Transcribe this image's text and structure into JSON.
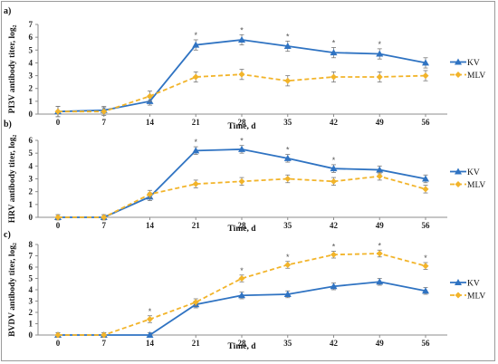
{
  "colors": {
    "kv": "#2f73c2",
    "mlv": "#f2b42a",
    "error": "#7a7a7a",
    "axis": "#8c8c8c"
  },
  "chart_data": [
    {
      "panel": "a)",
      "type": "line",
      "x": [
        0,
        7,
        14,
        21,
        28,
        35,
        42,
        49,
        56
      ],
      "xlabel": "Time, d",
      "ylabel": "PI3V antibody titer, log₂",
      "ylim": [
        0,
        7
      ],
      "yticks": [
        0,
        1,
        2,
        3,
        4,
        5,
        6,
        7
      ],
      "grid": false,
      "legend": "right",
      "series": [
        {
          "name": "KV",
          "values": [
            0.2,
            0.3,
            1.0,
            5.4,
            5.8,
            5.3,
            4.8,
            4.7,
            4.0
          ],
          "error": [
            0.4,
            0.3,
            0.3,
            0.4,
            0.4,
            0.4,
            0.4,
            0.4,
            0.4
          ]
        },
        {
          "name": "MLV",
          "values": [
            0.2,
            0.2,
            1.4,
            2.9,
            3.1,
            2.6,
            2.9,
            2.9,
            3.0
          ],
          "error": [
            0.4,
            0.3,
            0.4,
            0.4,
            0.4,
            0.4,
            0.4,
            0.4,
            0.4
          ]
        }
      ],
      "significant_x": [
        21,
        28,
        35,
        42,
        49
      ]
    },
    {
      "panel": "b)",
      "type": "line",
      "x": [
        0,
        7,
        14,
        21,
        28,
        35,
        42,
        49,
        56
      ],
      "xlabel": "Time, d",
      "ylabel": "HRV antibody titer, log₂",
      "ylim": [
        0,
        6
      ],
      "yticks": [
        0,
        1,
        2,
        3,
        4,
        5,
        6
      ],
      "grid": false,
      "legend": "right",
      "series": [
        {
          "name": "KV",
          "values": [
            0.0,
            0.0,
            1.6,
            5.2,
            5.3,
            4.6,
            3.8,
            3.7,
            3.0
          ],
          "error": [
            0.2,
            0.2,
            0.3,
            0.3,
            0.3,
            0.3,
            0.3,
            0.3,
            0.3
          ]
        },
        {
          "name": "MLV",
          "values": [
            0.0,
            0.0,
            1.8,
            2.6,
            2.8,
            3.0,
            2.8,
            3.2,
            2.2
          ],
          "error": [
            0.2,
            0.2,
            0.3,
            0.3,
            0.3,
            0.3,
            0.3,
            0.3,
            0.3
          ]
        }
      ],
      "significant_x": [
        21,
        28,
        35,
        42
      ]
    },
    {
      "panel": "c)",
      "type": "line",
      "x": [
        0,
        7,
        14,
        21,
        28,
        35,
        42,
        49,
        56
      ],
      "xlabel": "Time, d",
      "ylabel": "BVDV antibody titer, log₂",
      "ylim": [
        0,
        8
      ],
      "yticks": [
        0,
        1,
        2,
        3,
        4,
        5,
        6,
        7,
        8
      ],
      "grid": false,
      "legend": "right",
      "series": [
        {
          "name": "KV",
          "values": [
            0.0,
            0.0,
            0.0,
            2.7,
            3.5,
            3.6,
            4.3,
            4.7,
            3.9
          ],
          "error": [
            0.2,
            0.2,
            0.2,
            0.3,
            0.3,
            0.3,
            0.3,
            0.3,
            0.3
          ]
        },
        {
          "name": "MLV",
          "values": [
            0.0,
            0.0,
            1.4,
            2.9,
            5.0,
            6.2,
            7.1,
            7.2,
            6.1
          ],
          "error": [
            0.2,
            0.2,
            0.3,
            0.3,
            0.3,
            0.3,
            0.3,
            0.3,
            0.3
          ]
        }
      ],
      "significant_x": [
        14,
        28,
        35,
        42,
        49,
        56
      ]
    }
  ],
  "legend_labels": {
    "kv": "KV",
    "mlv": "MLV"
  },
  "star_symbol": "*"
}
